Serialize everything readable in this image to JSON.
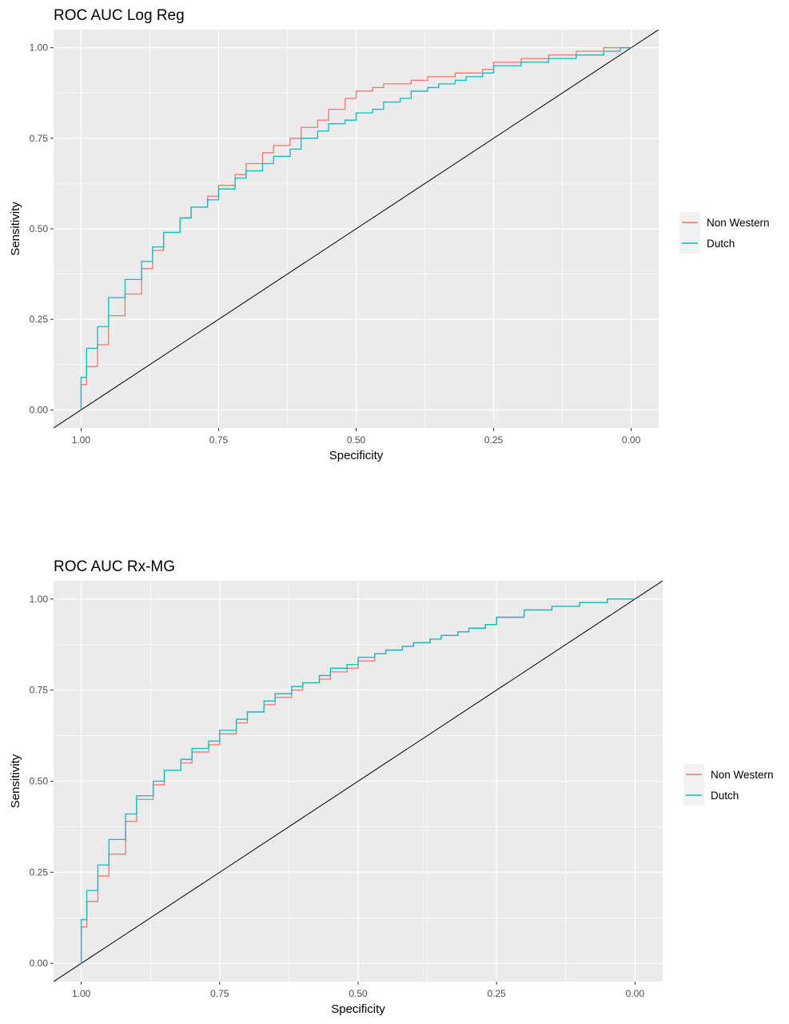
{
  "colors": {
    "non_western": "#F8766D",
    "dutch": "#00BFC4",
    "diagonal": "#000000",
    "panel_bg": "#EBEBEB",
    "grid": "#FFFFFF"
  },
  "chart_data": [
    {
      "type": "line",
      "title": "ROC AUC Log Reg",
      "xlabel": "Specificity",
      "ylabel": "Sensitivity",
      "xlim": [
        1.05,
        -0.05
      ],
      "ylim": [
        -0.05,
        1.05
      ],
      "x_reversed": true,
      "xticks": [
        1.0,
        0.75,
        0.5,
        0.25,
        0.0
      ],
      "xtick_labels": [
        "1.00",
        "0.75",
        "0.50",
        "0.25",
        "0.00"
      ],
      "yticks": [
        0.0,
        0.25,
        0.5,
        0.75,
        1.0
      ],
      "ytick_labels": [
        "0.00",
        "0.25",
        "0.50",
        "0.75",
        "1.00"
      ],
      "grid": true,
      "legend_position": "right",
      "legend": [
        "Non Western",
        "Dutch"
      ],
      "series": [
        {
          "name": "Non Western",
          "color": "#F8766D",
          "x": [
            1.0,
            0.99,
            0.97,
            0.95,
            0.92,
            0.89,
            0.87,
            0.85,
            0.82,
            0.8,
            0.77,
            0.75,
            0.72,
            0.7,
            0.67,
            0.65,
            0.62,
            0.6,
            0.57,
            0.55,
            0.52,
            0.5,
            0.47,
            0.45,
            0.42,
            0.4,
            0.37,
            0.35,
            0.32,
            0.3,
            0.27,
            0.25,
            0.2,
            0.15,
            0.1,
            0.05,
            0.02,
            0.0
          ],
          "y": [
            0.0,
            0.07,
            0.12,
            0.18,
            0.26,
            0.32,
            0.39,
            0.44,
            0.49,
            0.53,
            0.56,
            0.59,
            0.62,
            0.65,
            0.68,
            0.71,
            0.73,
            0.75,
            0.78,
            0.8,
            0.83,
            0.86,
            0.88,
            0.89,
            0.9,
            0.9,
            0.91,
            0.92,
            0.92,
            0.93,
            0.93,
            0.94,
            0.96,
            0.97,
            0.98,
            0.99,
            1.0,
            1.0
          ]
        },
        {
          "name": "Dutch",
          "color": "#00BFC4",
          "x": [
            1.0,
            0.99,
            0.97,
            0.95,
            0.92,
            0.89,
            0.87,
            0.85,
            0.82,
            0.8,
            0.77,
            0.75,
            0.72,
            0.7,
            0.67,
            0.65,
            0.62,
            0.6,
            0.57,
            0.55,
            0.52,
            0.5,
            0.47,
            0.45,
            0.42,
            0.4,
            0.37,
            0.35,
            0.32,
            0.3,
            0.27,
            0.25,
            0.2,
            0.15,
            0.1,
            0.05,
            0.02,
            0.0
          ],
          "y": [
            0.0,
            0.09,
            0.17,
            0.23,
            0.31,
            0.36,
            0.41,
            0.45,
            0.49,
            0.53,
            0.56,
            0.58,
            0.61,
            0.64,
            0.66,
            0.68,
            0.7,
            0.72,
            0.75,
            0.77,
            0.79,
            0.8,
            0.82,
            0.83,
            0.85,
            0.86,
            0.88,
            0.89,
            0.9,
            0.91,
            0.92,
            0.93,
            0.95,
            0.96,
            0.97,
            0.98,
            0.99,
            1.0
          ]
        }
      ]
    },
    {
      "type": "line",
      "title": "ROC AUC Rx-MG",
      "xlabel": "Specificity",
      "ylabel": "Sensitivity",
      "xlim": [
        1.05,
        -0.05
      ],
      "ylim": [
        -0.05,
        1.05
      ],
      "x_reversed": true,
      "xticks": [
        1.0,
        0.75,
        0.5,
        0.25,
        0.0
      ],
      "xtick_labels": [
        "1.00",
        "0.75",
        "0.50",
        "0.25",
        "0.00"
      ],
      "yticks": [
        0.0,
        0.25,
        0.5,
        0.75,
        1.0
      ],
      "ytick_labels": [
        "0.00",
        "0.25",
        "0.50",
        "0.75",
        "1.00"
      ],
      "grid": true,
      "legend_position": "right",
      "legend": [
        "Non Western",
        "Dutch"
      ],
      "series": [
        {
          "name": "Non Western",
          "color": "#F8766D",
          "x": [
            1.0,
            0.99,
            0.97,
            0.95,
            0.92,
            0.9,
            0.87,
            0.85,
            0.82,
            0.8,
            0.77,
            0.75,
            0.72,
            0.7,
            0.67,
            0.65,
            0.62,
            0.6,
            0.57,
            0.55,
            0.52,
            0.5,
            0.47,
            0.45,
            0.42,
            0.4,
            0.37,
            0.35,
            0.32,
            0.3,
            0.27,
            0.25,
            0.2,
            0.15,
            0.1,
            0.05,
            0.02,
            0.0
          ],
          "y": [
            0.0,
            0.1,
            0.17,
            0.24,
            0.3,
            0.39,
            0.45,
            0.49,
            0.53,
            0.55,
            0.58,
            0.6,
            0.63,
            0.66,
            0.69,
            0.71,
            0.73,
            0.75,
            0.77,
            0.78,
            0.8,
            0.81,
            0.83,
            0.85,
            0.86,
            0.87,
            0.88,
            0.89,
            0.9,
            0.91,
            0.92,
            0.93,
            0.95,
            0.97,
            0.98,
            0.99,
            1.0,
            1.0
          ]
        },
        {
          "name": "Dutch",
          "color": "#00BFC4",
          "x": [
            1.0,
            0.99,
            0.97,
            0.95,
            0.92,
            0.9,
            0.87,
            0.85,
            0.82,
            0.8,
            0.77,
            0.75,
            0.72,
            0.7,
            0.67,
            0.65,
            0.62,
            0.6,
            0.57,
            0.55,
            0.52,
            0.5,
            0.47,
            0.45,
            0.42,
            0.4,
            0.37,
            0.35,
            0.32,
            0.3,
            0.27,
            0.25,
            0.2,
            0.15,
            0.1,
            0.05,
            0.02,
            0.0
          ],
          "y": [
            0.0,
            0.12,
            0.2,
            0.27,
            0.34,
            0.41,
            0.46,
            0.5,
            0.53,
            0.56,
            0.59,
            0.61,
            0.64,
            0.67,
            0.69,
            0.72,
            0.74,
            0.76,
            0.77,
            0.79,
            0.81,
            0.82,
            0.84,
            0.85,
            0.86,
            0.87,
            0.88,
            0.89,
            0.9,
            0.91,
            0.92,
            0.93,
            0.95,
            0.97,
            0.98,
            0.99,
            1.0,
            1.0
          ]
        }
      ]
    }
  ]
}
